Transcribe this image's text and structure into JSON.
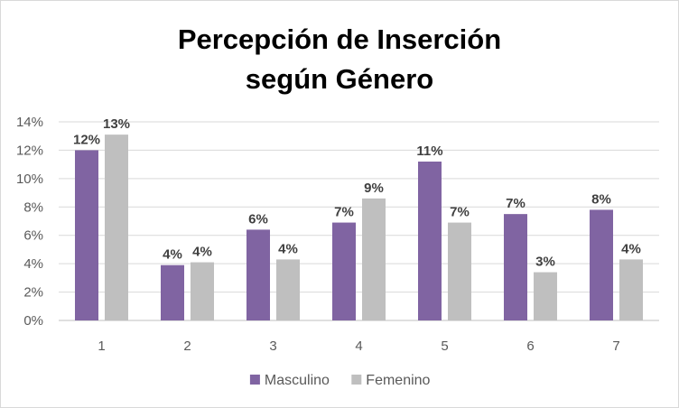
{
  "chart_data": {
    "type": "bar",
    "title_lines": [
      "Percepción de Inserción",
      "según Género"
    ],
    "categories": [
      "1",
      "2",
      "3",
      "4",
      "5",
      "6",
      "7"
    ],
    "series": [
      {
        "name": "Masculino",
        "color": "#8064a2",
        "values": [
          0.12,
          0.039,
          0.064,
          0.069,
          0.112,
          0.075,
          0.078
        ],
        "labels": [
          "12%",
          "4%",
          "6%",
          "7%",
          "11%",
          "7%",
          "8%"
        ]
      },
      {
        "name": "Femenino",
        "color": "#bfbfbf",
        "values": [
          0.131,
          0.041,
          0.043,
          0.086,
          0.069,
          0.034,
          0.043
        ],
        "labels": [
          "13%",
          "4%",
          "4%",
          "9%",
          "7%",
          "3%",
          "4%"
        ]
      }
    ],
    "y_ticks": [
      {
        "value": 0,
        "label": "0%"
      },
      {
        "value": 0.02,
        "label": "2%"
      },
      {
        "value": 0.04,
        "label": "4%"
      },
      {
        "value": 0.06,
        "label": "6%"
      },
      {
        "value": 0.08,
        "label": "8%"
      },
      {
        "value": 0.1,
        "label": "10%"
      },
      {
        "value": 0.12,
        "label": "12%"
      },
      {
        "value": 0.14,
        "label": "14%"
      }
    ],
    "ylim": [
      0,
      0.14
    ],
    "grid": true,
    "legend_position": "bottom-center",
    "xlabel": "",
    "ylabel": ""
  }
}
